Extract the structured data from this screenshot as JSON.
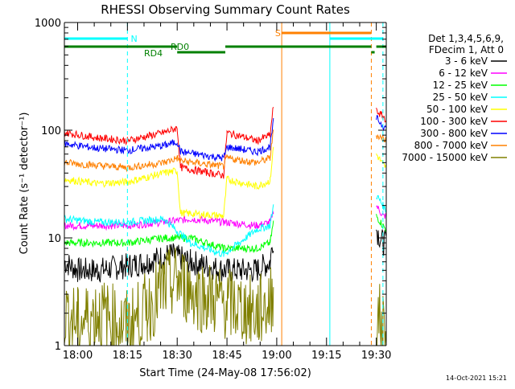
{
  "chart_data": {
    "type": "line",
    "title": "RHESSI Observing Summary Count Rates",
    "xlabel": "Start Time (24-May-08 17:56:02)",
    "ylabel": "Count Rate (s⁻¹ detector⁻¹)",
    "y_scale": "log",
    "ylim": [
      1,
      1000
    ],
    "xlim_minutes_after_1756": [
      0,
      97
    ],
    "x_ticks": [
      {
        "label": "18:00",
        "minute": 4
      },
      {
        "label": "18:15",
        "minute": 19
      },
      {
        "label": "18:30",
        "minute": 34
      },
      {
        "label": "18:45",
        "minute": 49
      },
      {
        "label": "19:00",
        "minute": 64
      },
      {
        "label": "19:15",
        "minute": 79
      },
      {
        "label": "19:30",
        "minute": 94
      }
    ],
    "y_ticks": [
      {
        "label": "1",
        "value": 1
      },
      {
        "label": "10",
        "value": 10
      },
      {
        "label": "100",
        "value": 100
      },
      {
        "label": "1000",
        "value": 1000
      }
    ],
    "legend_header": [
      "Det 1,3,4,5,6,9,",
      "FDecim 1, Att 0"
    ],
    "legend_position": "right",
    "footer_date": "14-Oct-2021 15:21",
    "flag_labels": [
      "N",
      "RD4",
      "RD0",
      "S"
    ],
    "series": [
      {
        "name": "3 - 6 keV",
        "color": "#000000",
        "points": [
          [
            0,
            6
          ],
          [
            4,
            5
          ],
          [
            10,
            5
          ],
          [
            19,
            5.5
          ],
          [
            25,
            6
          ],
          [
            32,
            7
          ],
          [
            38,
            6
          ],
          [
            48,
            5
          ],
          [
            58,
            5
          ],
          [
            62,
            6
          ],
          [
            63,
            10
          ],
          [
            65,
            null
          ],
          [
            93,
            null
          ],
          [
            94,
            12
          ],
          [
            96,
            9
          ],
          [
            97,
            9
          ]
        ]
      },
      {
        "name": "6 - 12 keV",
        "color": "#ff00ff",
        "points": [
          [
            0,
            13
          ],
          [
            10,
            13
          ],
          [
            19,
            13
          ],
          [
            30,
            14
          ],
          [
            38,
            15
          ],
          [
            48,
            14
          ],
          [
            58,
            13
          ],
          [
            62,
            14
          ],
          [
            63,
            18
          ],
          [
            65,
            null
          ],
          [
            93,
            null
          ],
          [
            94,
            20
          ],
          [
            96,
            16
          ],
          [
            97,
            16
          ]
        ]
      },
      {
        "name": "12 - 25 keV",
        "color": "#00ff00",
        "points": [
          [
            0,
            9
          ],
          [
            10,
            9
          ],
          [
            19,
            9
          ],
          [
            30,
            10
          ],
          [
            38,
            10
          ],
          [
            48,
            8
          ],
          [
            58,
            8
          ],
          [
            62,
            9
          ],
          [
            63,
            14
          ],
          [
            65,
            null
          ],
          [
            93,
            null
          ],
          [
            94,
            16
          ],
          [
            96,
            13
          ],
          [
            97,
            12
          ]
        ]
      },
      {
        "name": "25 - 50 keV",
        "color": "#00ffff",
        "points": [
          [
            0,
            15
          ],
          [
            10,
            14
          ],
          [
            19,
            14
          ],
          [
            30,
            15
          ],
          [
            38,
            9
          ],
          [
            48,
            7
          ],
          [
            58,
            12
          ],
          [
            62,
            13
          ],
          [
            63,
            20
          ],
          [
            65,
            null
          ],
          [
            93,
            null
          ],
          [
            94,
            25
          ],
          [
            96,
            20
          ],
          [
            97,
            18
          ]
        ]
      },
      {
        "name": "50 - 100 keV",
        "color": "#ffff00",
        "points": [
          [
            0,
            35
          ],
          [
            10,
            32
          ],
          [
            19,
            33
          ],
          [
            30,
            40
          ],
          [
            34,
            42
          ],
          [
            35,
            17
          ],
          [
            48,
            16
          ],
          [
            49,
            35
          ],
          [
            58,
            30
          ],
          [
            62,
            34
          ],
          [
            63,
            70
          ],
          [
            65,
            null
          ],
          [
            93,
            null
          ],
          [
            94,
            60
          ],
          [
            96,
            48
          ],
          [
            97,
            45
          ]
        ]
      },
      {
        "name": "100 - 300 keV",
        "color": "#ff0000",
        "points": [
          [
            0,
            95
          ],
          [
            10,
            85
          ],
          [
            19,
            80
          ],
          [
            30,
            95
          ],
          [
            34,
            105
          ],
          [
            35,
            45
          ],
          [
            48,
            38
          ],
          [
            49,
            95
          ],
          [
            58,
            80
          ],
          [
            62,
            90
          ],
          [
            63,
            170
          ],
          [
            65,
            null
          ],
          [
            93,
            null
          ],
          [
            94,
            150
          ],
          [
            96,
            135
          ],
          [
            97,
            125
          ]
        ]
      },
      {
        "name": "300 - 800 keV",
        "color": "#0000ff",
        "points": [
          [
            0,
            75
          ],
          [
            10,
            68
          ],
          [
            19,
            65
          ],
          [
            30,
            72
          ],
          [
            34,
            78
          ],
          [
            35,
            63
          ],
          [
            48,
            55
          ],
          [
            49,
            70
          ],
          [
            58,
            63
          ],
          [
            62,
            70
          ],
          [
            63,
            120
          ],
          [
            65,
            null
          ],
          [
            93,
            null
          ],
          [
            94,
            130
          ],
          [
            96,
            110
          ],
          [
            97,
            105
          ]
        ]
      },
      {
        "name": "800 - 7000 keV",
        "color": "#ff8000",
        "points": [
          [
            0,
            50
          ],
          [
            10,
            47
          ],
          [
            19,
            45
          ],
          [
            30,
            50
          ],
          [
            34,
            55
          ],
          [
            35,
            52
          ],
          [
            48,
            46
          ],
          [
            49,
            55
          ],
          [
            58,
            50
          ],
          [
            62,
            55
          ],
          [
            63,
            100
          ],
          [
            65,
            null
          ],
          [
            93,
            null
          ],
          [
            94,
            90
          ],
          [
            96,
            85
          ],
          [
            97,
            80
          ]
        ]
      },
      {
        "name": "7000 - 15000 keV",
        "color": "#808000",
        "points": [
          [
            0,
            2
          ],
          [
            4,
            1.6
          ],
          [
            10,
            2
          ],
          [
            19,
            1.5
          ],
          [
            25,
            2.2
          ],
          [
            30,
            3.5
          ],
          [
            34,
            4
          ],
          [
            40,
            3
          ],
          [
            48,
            2.5
          ],
          [
            58,
            2
          ],
          [
            62,
            2.5
          ],
          [
            63,
            3
          ],
          [
            65,
            null
          ],
          [
            93,
            null
          ],
          [
            94,
            2
          ],
          [
            96,
            1.5
          ],
          [
            97,
            1.5
          ]
        ]
      }
    ]
  }
}
